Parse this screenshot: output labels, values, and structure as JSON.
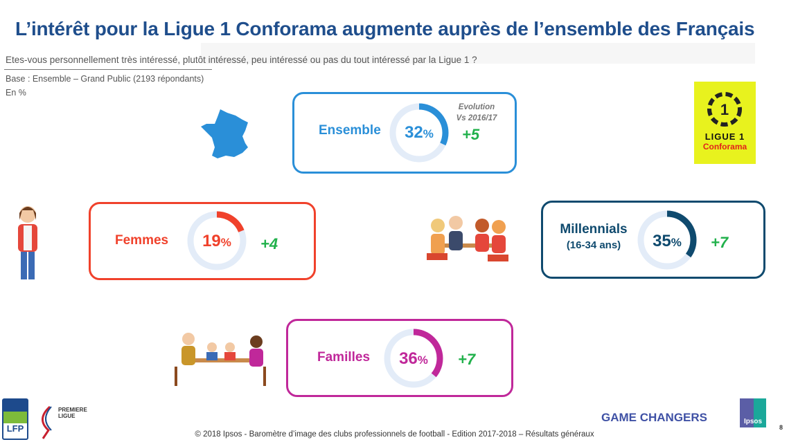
{
  "title": "L’intérêt pour la Ligue 1 Conforama augmente auprès de l’ensemble des Français",
  "question": "Etes-vous personnellement très intéressé, plutôt intéressé, peu intéressé ou pas du tout intéressé par la Ligue 1 ?",
  "base": "Base : Ensemble – Grand Public  (2193 répondants)",
  "unit": "En %",
  "evolution_header": {
    "line1": "Evolution",
    "line2": "Vs 2016/17"
  },
  "segments": [
    {
      "label": "Ensemble",
      "value": 32,
      "value_text": "32",
      "pct": "%",
      "evolution": "+5",
      "color": "#2a8fd8"
    },
    {
      "label": "Femmes",
      "value": 19,
      "value_text": "19",
      "pct": "%",
      "evolution": "+4",
      "color": "#f0412b"
    },
    {
      "label": "Millennials",
      "sublabel": "(16-34 ans)",
      "value": 35,
      "value_text": "35",
      "pct": "%",
      "evolution": "+7",
      "color": "#0f4a6e"
    },
    {
      "label": "Familles",
      "value": 36,
      "value_text": "36",
      "pct": "%",
      "evolution": "+7",
      "color": "#c0289a"
    }
  ],
  "logos": {
    "ligue1_line1": "LIGUE 1",
    "ligue1_line2": "Conforama",
    "lfp": "LFP",
    "premiere_ligue": "PREMIERE LIGUE",
    "ipsos": "Ipsos"
  },
  "game_changers": "GAME CHANGERS",
  "footer": "© 2018 Ipsos - Baromètre d’image des clubs professionnels de football  - Edition 2017-2018 – Résultats généraux",
  "page_number": "8",
  "track_color": "#e3ecf8"
}
